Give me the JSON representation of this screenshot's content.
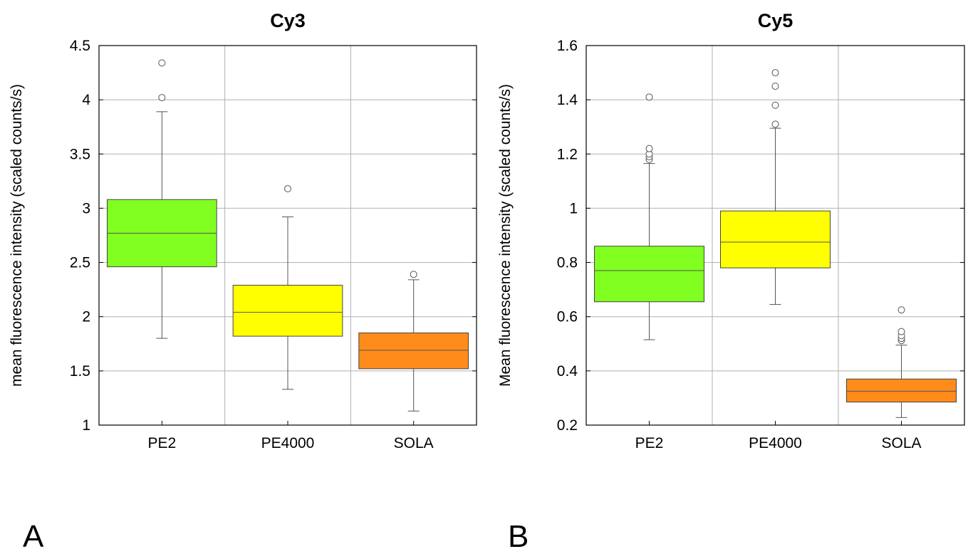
{
  "chart_data": [
    {
      "type": "box",
      "title": "Cy3",
      "ylabel": "mean fluorescence intensity (scaled counts/s)",
      "xlabel": "",
      "panel_label": "A",
      "ylim": [
        1,
        4.5
      ],
      "yticks": [
        "1",
        "1.5",
        "2",
        "2.5",
        "3",
        "3.5",
        "4",
        "4.5"
      ],
      "ytick_values": [
        1,
        1.5,
        2,
        2.5,
        3,
        3.5,
        4,
        4.5
      ],
      "grid": true,
      "categories": [
        "PE2",
        "PE4000",
        "SOLA"
      ],
      "colors": [
        "#80ff20",
        "#ffff00",
        "#ff8c1a"
      ],
      "boxes": [
        {
          "category": "PE2",
          "whisker_low": 1.8,
          "q1": 2.46,
          "median": 2.77,
          "q3": 3.08,
          "whisker_high": 3.89,
          "outliers": [
            4.02,
            4.34
          ]
        },
        {
          "category": "PE4000",
          "whisker_low": 1.33,
          "q1": 1.82,
          "median": 2.04,
          "q3": 2.29,
          "whisker_high": 2.92,
          "outliers": [
            3.18
          ]
        },
        {
          "category": "SOLA",
          "whisker_low": 1.13,
          "q1": 1.52,
          "median": 1.69,
          "q3": 1.85,
          "whisker_high": 2.34,
          "outliers": [
            2.39
          ]
        }
      ]
    },
    {
      "type": "box",
      "title": "Cy5",
      "ylabel": "Mean fluorescence intensity (scaled counts/s)",
      "xlabel": "",
      "panel_label": "B",
      "ylim": [
        0.2,
        1.6
      ],
      "yticks": [
        "0.2",
        "0.4",
        "0.6",
        "0.8",
        "1",
        "1.2",
        "1.4",
        "1.6"
      ],
      "ytick_values": [
        0.2,
        0.4,
        0.6,
        0.8,
        1.0,
        1.2,
        1.4,
        1.6
      ],
      "grid": true,
      "categories": [
        "PE2",
        "PE4000",
        "SOLA"
      ],
      "colors": [
        "#80ff20",
        "#ffff00",
        "#ff8c1a"
      ],
      "boxes": [
        {
          "category": "PE2",
          "whisker_low": 0.515,
          "q1": 0.655,
          "median": 0.77,
          "q3": 0.86,
          "whisker_high": 1.165,
          "outliers": [
            1.18,
            1.19,
            1.2,
            1.22,
            1.41
          ]
        },
        {
          "category": "PE4000",
          "whisker_low": 0.645,
          "q1": 0.78,
          "median": 0.875,
          "q3": 0.99,
          "whisker_high": 1.295,
          "outliers": [
            1.31,
            1.38,
            1.45,
            1.5
          ]
        },
        {
          "category": "SOLA",
          "whisker_low": 0.228,
          "q1": 0.285,
          "median": 0.325,
          "q3": 0.37,
          "whisker_high": 0.495,
          "outliers": [
            0.512,
            0.52,
            0.53,
            0.545,
            0.625
          ]
        }
      ]
    }
  ]
}
